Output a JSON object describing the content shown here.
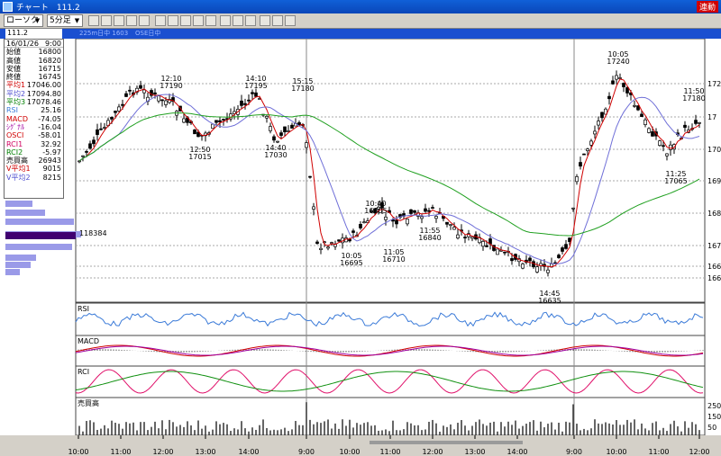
{
  "window": {
    "title": "チャート　111.2",
    "live_badge": "連動"
  },
  "toolbar": {
    "chart_type": "ローソク",
    "interval": "5分足"
  },
  "codebar": {
    "code": "111.2",
    "instrument": "225m日中 1603",
    "market": "OSE日中"
  },
  "info": [
    {
      "label": "16/01/26",
      "value": "9:00",
      "color": "#000000"
    },
    {
      "label": "始値",
      "value": "16800",
      "color": "#000000"
    },
    {
      "label": "高値",
      "value": "16820",
      "color": "#000000"
    },
    {
      "label": "安値",
      "value": "16715",
      "color": "#000000"
    },
    {
      "label": "終値",
      "value": "16745",
      "color": "#000000"
    },
    {
      "label": "平均1",
      "value": "17046.00",
      "color": "#d00000"
    },
    {
      "label": "平均2",
      "value": "17094.80",
      "color": "#5050d0"
    },
    {
      "label": "平均3",
      "value": "17078.46",
      "color": "#008000"
    },
    {
      "label": "RSI",
      "value": "25.16",
      "color": "#3a7ad8"
    },
    {
      "label": "MACD",
      "value": "-74.05",
      "color": "#d00000"
    },
    {
      "label": "ｼｸﾞﾅﾙ",
      "value": "-16.04",
      "color": "#a000a0"
    },
    {
      "label": "OSCI",
      "value": "-58.01",
      "color": "#d00000"
    },
    {
      "label": "RCI1",
      "value": "32.92",
      "color": "#d00060"
    },
    {
      "label": "RCI2",
      "value": "-5.97",
      "color": "#008000"
    },
    {
      "label": "売買高",
      "value": "26943",
      "color": "#000000"
    },
    {
      "label": "V平均1",
      "value": "9015",
      "color": "#d00000"
    },
    {
      "label": "V平均2",
      "value": "8215",
      "color": "#5050d0"
    }
  ],
  "price_axis": [
    "172",
    "17",
    "170",
    "169",
    "168",
    "167",
    "166",
    "166"
  ],
  "volume_axis": [
    "250",
    "150",
    "50"
  ],
  "volume_profile_label": "118384",
  "annotations": [
    {
      "time": "12:10",
      "value": "17190"
    },
    {
      "time": "14:10",
      "value": "17195"
    },
    {
      "time": "15:15",
      "value": "17180"
    },
    {
      "time": "12:50",
      "value": "17015"
    },
    {
      "time": "14:40",
      "value": "17030"
    },
    {
      "time": "10:40",
      "value": "16805"
    },
    {
      "time": "11:55",
      "value": "16840"
    },
    {
      "time": "10:05",
      "value": "16695"
    },
    {
      "time": "11:05",
      "value": "16710"
    },
    {
      "time": "14:45",
      "value": "16635"
    },
    {
      "time": "10:05",
      "value": "17240"
    },
    {
      "time": "11:50",
      "value": "17180"
    },
    {
      "time": "11:25",
      "value": "17065"
    }
  ],
  "panels": {
    "rsi": "RSI",
    "macd": "MACD",
    "rci": "RCI",
    "volume": "売買高"
  },
  "time_axis": [
    "10:00",
    "11:00",
    "12:00",
    "13:00",
    "14:00",
    "9:00",
    "10:00",
    "11:00",
    "12:00",
    "13:00",
    "14:00",
    "9:00",
    "10:00",
    "11:00",
    "12:00"
  ]
}
